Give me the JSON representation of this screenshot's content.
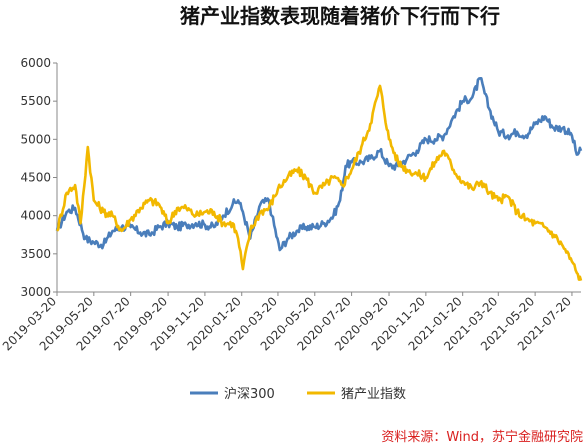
{
  "chart_data": {
    "type": "line",
    "title": "猪产业指数表现随着猪价下行而下行",
    "source": "资料来源：Wind，苏宁金融研究院",
    "ylim": [
      3000,
      6000
    ],
    "yticks": [
      "3000",
      "3500",
      "4000",
      "4500",
      "5000",
      "5500",
      "6000"
    ],
    "xticks": [
      "2019-03-20",
      "2019-05-20",
      "2019-07-20",
      "2019-09-20",
      "2019-11-20",
      "2020-01-20",
      "2020-03-20",
      "2020-05-20",
      "2020-07-20",
      "2020-09-20",
      "2020-11-20",
      "2021-01-20",
      "2021-03-20",
      "2021-05-20",
      "2021-07-20"
    ],
    "xlim": [
      "2019-03-20",
      "2021-08-04"
    ],
    "grid": false,
    "legend_position": "bottom",
    "colors": {
      "沪深300": "#4a7ebb",
      "猪产业指数": "#f2b800"
    },
    "series": [
      {
        "name": "沪深300",
        "points": [
          [
            "2019-03-20",
            3800
          ],
          [
            "2019-04-05",
            4050
          ],
          [
            "2019-04-19",
            4100
          ],
          [
            "2019-05-06",
            3700
          ],
          [
            "2019-05-20",
            3650
          ],
          [
            "2019-06-05",
            3620
          ],
          [
            "2019-06-20",
            3800
          ],
          [
            "2019-07-05",
            3850
          ],
          [
            "2019-07-20",
            3850
          ],
          [
            "2019-08-05",
            3780
          ],
          [
            "2019-08-20",
            3750
          ],
          [
            "2019-09-05",
            3850
          ],
          [
            "2019-09-20",
            3900
          ],
          [
            "2019-10-05",
            3850
          ],
          [
            "2019-10-20",
            3880
          ],
          [
            "2019-11-05",
            3900
          ],
          [
            "2019-11-20",
            3880
          ],
          [
            "2019-12-05",
            3850
          ],
          [
            "2019-12-20",
            4000
          ],
          [
            "2020-01-05",
            4150
          ],
          [
            "2020-01-14",
            4200
          ],
          [
            "2020-01-22",
            4050
          ],
          [
            "2020-02-03",
            3700
          ],
          [
            "2020-02-20",
            4150
          ],
          [
            "2020-03-05",
            4200
          ],
          [
            "2020-03-10",
            4000
          ],
          [
            "2020-03-23",
            3550
          ],
          [
            "2020-04-05",
            3700
          ],
          [
            "2020-04-20",
            3800
          ],
          [
            "2020-05-05",
            3850
          ],
          [
            "2020-05-20",
            3850
          ],
          [
            "2020-06-05",
            3900
          ],
          [
            "2020-06-20",
            4000
          ],
          [
            "2020-07-01",
            4200
          ],
          [
            "2020-07-10",
            4650
          ],
          [
            "2020-07-20",
            4700
          ],
          [
            "2020-08-05",
            4700
          ],
          [
            "2020-08-20",
            4750
          ],
          [
            "2020-09-05",
            4850
          ],
          [
            "2020-09-20",
            4650
          ],
          [
            "2020-10-05",
            4650
          ],
          [
            "2020-10-20",
            4750
          ],
          [
            "2020-11-05",
            4850
          ],
          [
            "2020-11-20",
            5000
          ],
          [
            "2020-12-05",
            5000
          ],
          [
            "2020-12-20",
            5050
          ],
          [
            "2021-01-05",
            5300
          ],
          [
            "2021-01-20",
            5500
          ],
          [
            "2021-02-05",
            5550
          ],
          [
            "2021-02-18",
            5800
          ],
          [
            "2021-03-05",
            5400
          ],
          [
            "2021-03-20",
            5100
          ],
          [
            "2021-04-05",
            5050
          ],
          [
            "2021-04-20",
            5100
          ],
          [
            "2021-05-05",
            5050
          ],
          [
            "2021-05-20",
            5200
          ],
          [
            "2021-06-05",
            5300
          ],
          [
            "2021-06-20",
            5150
          ],
          [
            "2021-07-05",
            5150
          ],
          [
            "2021-07-20",
            5050
          ],
          [
            "2021-07-28",
            4800
          ],
          [
            "2021-08-04",
            4850
          ]
        ]
      },
      {
        "name": "猪产业指数",
        "points": [
          [
            "2019-03-20",
            3800
          ],
          [
            "2019-04-05",
            4300
          ],
          [
            "2019-04-19",
            4400
          ],
          [
            "2019-04-28",
            3900
          ],
          [
            "2019-05-10",
            4900
          ],
          [
            "2019-05-20",
            4200
          ],
          [
            "2019-06-05",
            4050
          ],
          [
            "2019-06-20",
            4000
          ],
          [
            "2019-07-05",
            3800
          ],
          [
            "2019-07-20",
            3950
          ],
          [
            "2019-08-05",
            4100
          ],
          [
            "2019-08-20",
            4200
          ],
          [
            "2019-09-05",
            4150
          ],
          [
            "2019-09-20",
            3900
          ],
          [
            "2019-10-05",
            4100
          ],
          [
            "2019-10-20",
            4100
          ],
          [
            "2019-11-05",
            4000
          ],
          [
            "2019-11-20",
            4050
          ],
          [
            "2019-12-05",
            4050
          ],
          [
            "2019-12-20",
            3900
          ],
          [
            "2020-01-05",
            3900
          ],
          [
            "2020-01-14",
            3700
          ],
          [
            "2020-01-22",
            3300
          ],
          [
            "2020-02-03",
            3800
          ],
          [
            "2020-02-20",
            4050
          ],
          [
            "2020-03-05",
            4100
          ],
          [
            "2020-03-20",
            4350
          ],
          [
            "2020-04-05",
            4500
          ],
          [
            "2020-04-20",
            4600
          ],
          [
            "2020-05-05",
            4500
          ],
          [
            "2020-05-20",
            4300
          ],
          [
            "2020-06-05",
            4400
          ],
          [
            "2020-06-20",
            4500
          ],
          [
            "2020-07-05",
            4400
          ],
          [
            "2020-07-20",
            4600
          ],
          [
            "2020-08-05",
            4900
          ],
          [
            "2020-08-20",
            5200
          ],
          [
            "2020-09-05",
            5700
          ],
          [
            "2020-09-20",
            5000
          ],
          [
            "2020-10-05",
            4700
          ],
          [
            "2020-10-20",
            4600
          ],
          [
            "2020-11-05",
            4550
          ],
          [
            "2020-11-20",
            4500
          ],
          [
            "2020-12-05",
            4700
          ],
          [
            "2020-12-20",
            4850
          ],
          [
            "2021-01-05",
            4600
          ],
          [
            "2021-01-20",
            4450
          ],
          [
            "2021-02-05",
            4350
          ],
          [
            "2021-02-20",
            4450
          ],
          [
            "2021-03-05",
            4300
          ],
          [
            "2021-03-20",
            4200
          ],
          [
            "2021-04-05",
            4250
          ],
          [
            "2021-04-20",
            4050
          ],
          [
            "2021-05-05",
            3950
          ],
          [
            "2021-05-20",
            3900
          ],
          [
            "2021-06-05",
            3850
          ],
          [
            "2021-06-20",
            3750
          ],
          [
            "2021-07-05",
            3600
          ],
          [
            "2021-07-20",
            3400
          ],
          [
            "2021-07-28",
            3250
          ],
          [
            "2021-08-04",
            3150
          ]
        ]
      }
    ]
  }
}
